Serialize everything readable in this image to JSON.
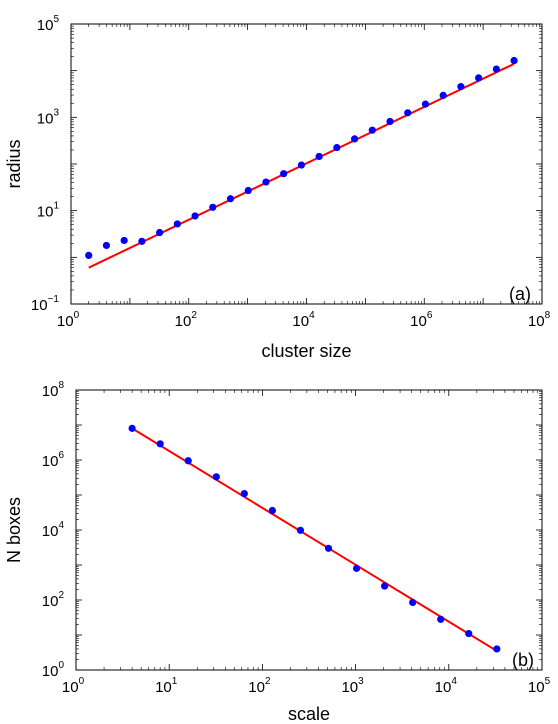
{
  "chart_data": [
    {
      "type": "scatter",
      "panel_label": "(a)",
      "xlabel": "cluster size",
      "ylabel": "radius",
      "xscale": "log",
      "yscale": "log",
      "xlim": [
        1,
        100000000
      ],
      "ylim": [
        0.1,
        100000
      ],
      "x_ticks": [
        {
          "base": "10",
          "exp": "0"
        },
        {
          "base": "10",
          "exp": "2"
        },
        {
          "base": "10",
          "exp": "4"
        },
        {
          "base": "10",
          "exp": "6"
        },
        {
          "base": "10",
          "exp": "8"
        }
      ],
      "y_ticks": [
        {
          "base": "10",
          "exp": "−1"
        },
        {
          "base": "10",
          "exp": "1"
        },
        {
          "base": "10",
          "exp": "3"
        },
        {
          "base": "10",
          "exp": "5"
        }
      ],
      "grid": false,
      "series": [
        {
          "kind": "points",
          "color": "#0000ff",
          "x": [
            2,
            4,
            8,
            16,
            32,
            64,
            128,
            256,
            512,
            1024,
            2048,
            4096,
            8192,
            16384,
            32768,
            65536,
            131072,
            262144,
            524288,
            1048576,
            2097152,
            4194304,
            8388608,
            16777216,
            33554432
          ],
          "y": [
            1.1,
            1.8,
            2.3,
            2.2,
            3.4,
            5.2,
            7.7,
            11.8,
            18,
            27,
            41,
            62,
            95,
            145,
            225,
            345,
            530,
            815,
            1250,
            1920,
            2950,
            4550,
            7000,
            10800,
            16500
          ]
        },
        {
          "kind": "line",
          "color": "#ff0000",
          "x": [
            2,
            33554432
          ],
          "y": [
            0.6,
            14000
          ]
        }
      ]
    },
    {
      "type": "scatter",
      "panel_label": "(b)",
      "xlabel": "scale",
      "ylabel": "N boxes",
      "xscale": "log",
      "yscale": "log",
      "xlim": [
        1,
        100000
      ],
      "ylim": [
        1,
        100000000
      ],
      "x_ticks": [
        {
          "base": "10",
          "exp": "0"
        },
        {
          "base": "10",
          "exp": "1"
        },
        {
          "base": "10",
          "exp": "2"
        },
        {
          "base": "10",
          "exp": "3"
        },
        {
          "base": "10",
          "exp": "4"
        },
        {
          "base": "10",
          "exp": "5"
        }
      ],
      "y_ticks": [
        {
          "base": "10",
          "exp": "0"
        },
        {
          "base": "10",
          "exp": "2"
        },
        {
          "base": "10",
          "exp": "4"
        },
        {
          "base": "10",
          "exp": "6"
        },
        {
          "base": "10",
          "exp": "8"
        }
      ],
      "grid": false,
      "series": [
        {
          "kind": "points",
          "color": "#0000ff",
          "x": [
            4,
            8,
            16,
            32,
            64,
            128,
            256,
            512,
            1024,
            2048,
            4096,
            8192,
            16384,
            32768
          ],
          "y": [
            8000000,
            2900000,
            950000,
            330000,
            110000,
            36000,
            9800,
            3000,
            800,
            250,
            85,
            28,
            11,
            4
          ]
        },
        {
          "kind": "line",
          "color": "#ff0000",
          "x": [
            4,
            32768
          ],
          "y": [
            8000000,
            3.5
          ]
        }
      ]
    }
  ]
}
